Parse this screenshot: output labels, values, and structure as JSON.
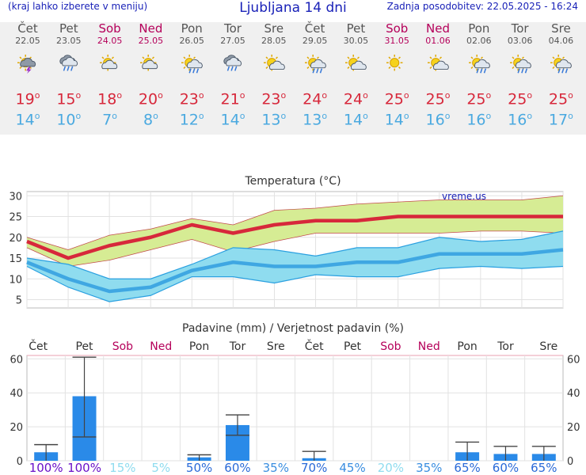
{
  "header": {
    "left_note": "(kraj lahko izberete v meniju)",
    "title": "Ljubljana 14 dni",
    "updated": "Zadnja posodobitev: 22.05.2025 - 16:24"
  },
  "days": [
    {
      "name": "Čet",
      "date": "22.05",
      "weekend": false,
      "icon": "storm-icon",
      "tmax": "19",
      "tmin": "14"
    },
    {
      "name": "Pet",
      "date": "23.05",
      "weekend": false,
      "icon": "rain-cloud-icon",
      "tmax": "15",
      "tmin": "10"
    },
    {
      "name": "Sob",
      "date": "24.05",
      "weekend": true,
      "icon": "partly-cloudy-icon",
      "tmax": "18",
      "tmin": "7"
    },
    {
      "name": "Ned",
      "date": "25.05",
      "weekend": true,
      "icon": "partly-cloudy-icon",
      "tmax": "20",
      "tmin": "8"
    },
    {
      "name": "Pon",
      "date": "26.05",
      "weekend": false,
      "icon": "sun-rain-icon",
      "tmax": "23",
      "tmin": "12"
    },
    {
      "name": "Tor",
      "date": "27.05",
      "weekend": false,
      "icon": "rain-cloud-icon",
      "tmax": "21",
      "tmin": "14"
    },
    {
      "name": "Sre",
      "date": "28.05",
      "weekend": false,
      "icon": "sun-cloud-icon",
      "tmax": "23",
      "tmin": "13"
    },
    {
      "name": "Čet",
      "date": "29.05",
      "weekend": false,
      "icon": "sun-rain-icon",
      "tmax": "24",
      "tmin": "13"
    },
    {
      "name": "Pet",
      "date": "30.05",
      "weekend": false,
      "icon": "sun-cloud-icon",
      "tmax": "24",
      "tmin": "14"
    },
    {
      "name": "Sob",
      "date": "31.05",
      "weekend": true,
      "icon": "sun-icon",
      "tmax": "25",
      "tmin": "14"
    },
    {
      "name": "Ned",
      "date": "01.06",
      "weekend": true,
      "icon": "sun-cloud-icon",
      "tmax": "25",
      "tmin": "16"
    },
    {
      "name": "Pon",
      "date": "02.06",
      "weekend": false,
      "icon": "sun-rain-icon",
      "tmax": "25",
      "tmin": "16"
    },
    {
      "name": "Tor",
      "date": "03.06",
      "weekend": false,
      "icon": "sun-rain-icon",
      "tmax": "25",
      "tmin": "16"
    },
    {
      "name": "Sre",
      "date": "04.06",
      "weekend": false,
      "icon": "sun-rain-icon",
      "tmax": "25",
      "tmin": "17"
    }
  ],
  "degree_symbol": "o",
  "colors": {
    "header_text": "#1a22b8",
    "weekend": "#b5005a",
    "tmax": "#d7283b",
    "tmin": "#4aa9e0",
    "tmax_band": "#d6ec94",
    "tmin_band": "#8fdcef",
    "precip_bar": "#2a8ae8"
  },
  "chart_data": [
    {
      "type": "line",
      "title": "Temperatura (°C)",
      "watermark": "vreme.us",
      "ylim": [
        3,
        31
      ],
      "yticks": [
        5,
        10,
        15,
        20,
        25,
        30
      ],
      "grid": true,
      "categories": [
        "Čet",
        "Pet",
        "Sob",
        "Ned",
        "Pon",
        "Tor",
        "Sre",
        "Čet",
        "Pet",
        "Sob",
        "Ned",
        "Pon",
        "Tor",
        "Sre"
      ],
      "series": [
        {
          "values": [
            19,
            15,
            18,
            20,
            23,
            21,
            23,
            24,
            24,
            25,
            25,
            25,
            25,
            25
          ],
          "band_high": [
            20,
            17,
            20.5,
            22,
            24.5,
            23,
            26.5,
            27,
            28,
            28.5,
            29,
            29,
            29,
            30
          ],
          "band_low": [
            17.5,
            13,
            14.5,
            17,
            19.5,
            16.5,
            19,
            21,
            21,
            21,
            21,
            21.5,
            21.5,
            21
          ]
        },
        {
          "values": [
            14,
            10,
            7,
            8,
            12,
            14,
            13,
            13,
            14,
            14,
            16,
            16,
            16,
            17
          ],
          "band_high": [
            15,
            13.5,
            10,
            10,
            13.5,
            17.5,
            17,
            15.5,
            17.5,
            17.5,
            20,
            19,
            19.5,
            21.5
          ],
          "band_low": [
            13,
            8,
            4.5,
            6,
            10.5,
            10.5,
            9,
            11,
            10.5,
            10.5,
            12.5,
            13,
            12.5,
            13
          ]
        }
      ]
    },
    {
      "type": "bar",
      "title": "Padavine (mm) / Verjetnost padavin (%)",
      "ylim": [
        0,
        62
      ],
      "yticks": [
        0,
        20,
        40,
        60
      ],
      "categories": [
        "Čet",
        "Pet",
        "Sob",
        "Ned",
        "Pon",
        "Tor",
        "Sre",
        "Čet",
        "Pet",
        "Sob",
        "Ned",
        "Pon",
        "Tor",
        "Sre"
      ],
      "values": [
        5,
        38,
        0,
        0,
        2,
        21,
        0,
        1.5,
        0,
        0,
        0,
        5,
        4,
        4
      ],
      "error_high": [
        9.5,
        61,
        0,
        0,
        3.5,
        27,
        0,
        5.5,
        0,
        0,
        0,
        11,
        8.5,
        8.5
      ],
      "error_low": [
        0,
        14,
        0,
        0,
        0,
        15,
        0,
        0,
        0,
        0,
        0,
        0,
        0,
        0
      ],
      "probability": [
        "100%",
        "100%",
        "15%",
        "5%",
        "50%",
        "60%",
        "35%",
        "70%",
        "45%",
        "20%",
        "35%",
        "65%",
        "60%",
        "65%"
      ],
      "probability_colors": [
        "#6a10c8",
        "#6a10c8",
        "#8fdcef",
        "#8fdcef",
        "#2a6ad8",
        "#2a6ad8",
        "#3a8ee0",
        "#2a6ad8",
        "#3a8ee0",
        "#8fdcef",
        "#3a8ee0",
        "#2a6ad8",
        "#2a6ad8",
        "#2a6ad8"
      ]
    }
  ]
}
